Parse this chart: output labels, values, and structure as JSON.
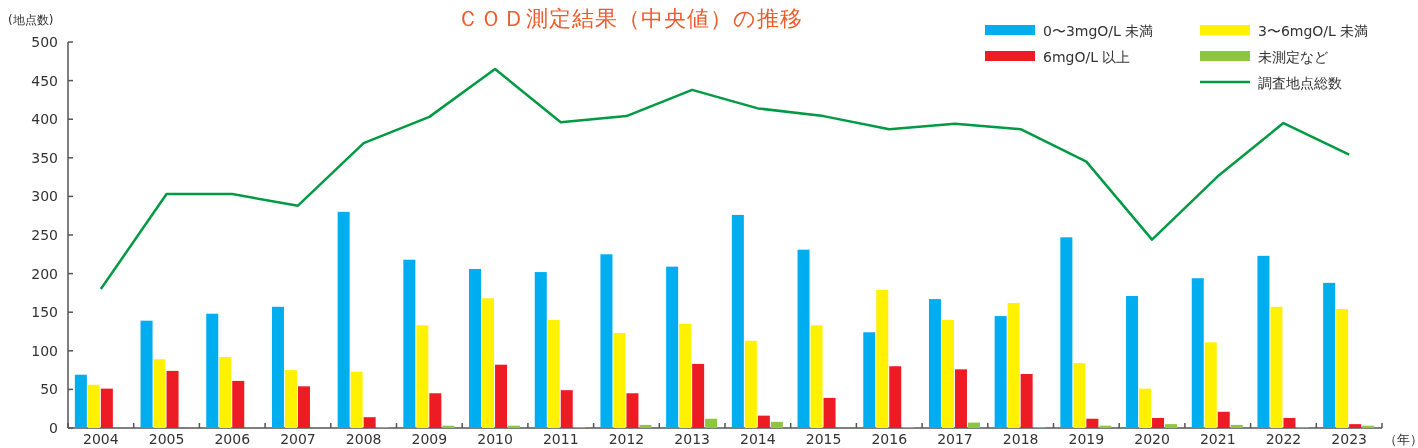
{
  "chart_data": {
    "type": "bar",
    "title": "ＣＯＤ測定結果（中央値）の推移",
    "ylabel": "(地点数)",
    "xlabel": "（年）",
    "categories": [
      "2004",
      "2005",
      "2006",
      "2007",
      "2008",
      "2009",
      "2010",
      "2011",
      "2012",
      "2013",
      "2014",
      "2015",
      "2016",
      "2017",
      "2018",
      "2019",
      "2020",
      "2021",
      "2022",
      "2023"
    ],
    "series": [
      {
        "name": "0〜3mgO/L 未満",
        "color": "#00aeef",
        "values": [
          69,
          139,
          148,
          157,
          280,
          218,
          206,
          202,
          225,
          209,
          276,
          231,
          124,
          167,
          145,
          247,
          171,
          194,
          223,
          188
        ]
      },
      {
        "name": "3〜6mgO/L 未満",
        "color": "#fff100",
        "values": [
          56,
          89,
          92,
          75,
          73,
          133,
          168,
          140,
          123,
          135,
          113,
          133,
          179,
          140,
          162,
          84,
          51,
          111,
          157,
          154
        ]
      },
      {
        "name": "6mgO/L 以上",
        "color": "#ed1c24",
        "values": [
          51,
          74,
          61,
          54,
          14,
          45,
          82,
          49,
          45,
          83,
          16,
          39,
          80,
          76,
          70,
          12,
          13,
          21,
          13,
          5
        ]
      },
      {
        "name": "未測定など",
        "color": "#8dc63f",
        "values": [
          0,
          0,
          0,
          0,
          1,
          3,
          3,
          1,
          4,
          12,
          8,
          0,
          1,
          7,
          1,
          3,
          5,
          4,
          1,
          3
        ]
      },
      {
        "name": "調査地点総数",
        "type": "line",
        "color": "#009a44",
        "values": [
          180,
          303,
          303,
          288,
          369,
          403,
          465,
          396,
          404,
          438,
          414,
          404,
          387,
          394,
          387,
          345,
          244,
          326,
          395,
          354
        ]
      }
    ],
    "ylim": [
      0,
      500
    ],
    "yticks": [
      0,
      50,
      100,
      150,
      200,
      250,
      300,
      350,
      400,
      450,
      500
    ],
    "legend": "top right",
    "grid": false
  }
}
